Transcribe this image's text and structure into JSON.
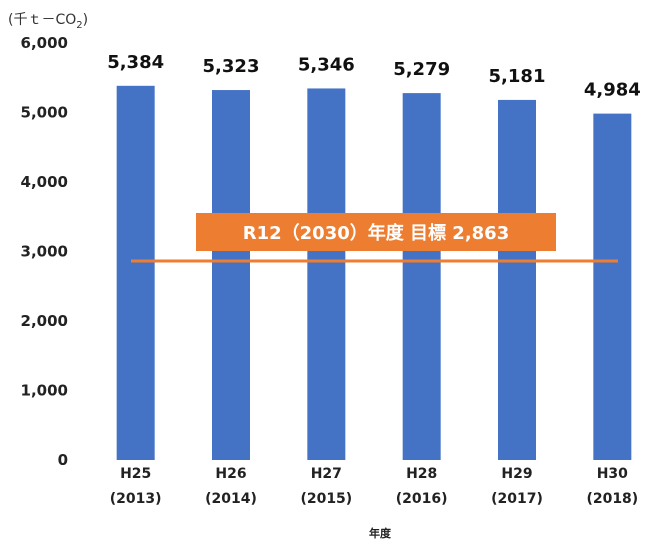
{
  "chart_data": {
    "type": "bar",
    "unit_label": "(千ｔ－CO",
    "unit_sub": "2",
    "unit_close": ")",
    "xlabel": "年度",
    "categories": [
      {
        "top": "H25",
        "bottom": "(2013)"
      },
      {
        "top": "H26",
        "bottom": "(2014)"
      },
      {
        "top": "H27",
        "bottom": "(2015)"
      },
      {
        "top": "H28",
        "bottom": "(2016)"
      },
      {
        "top": "H29",
        "bottom": "(2017)"
      },
      {
        "top": "H30",
        "bottom": "(2018)"
      }
    ],
    "values": [
      5384,
      5323,
      5346,
      5279,
      5181,
      4984
    ],
    "value_labels": [
      "5,384",
      "5,323",
      "5,346",
      "5,279",
      "5,181",
      "4,984"
    ],
    "ylim": [
      0,
      6000
    ],
    "yticks": [
      0,
      1000,
      2000,
      3000,
      4000,
      5000,
      6000
    ],
    "ytick_labels": [
      "0",
      "1,000",
      "2,000",
      "3,000",
      "4,000",
      "5,000",
      "6,000"
    ],
    "grid": false,
    "target": {
      "value": 2863,
      "label": "R12（2030）年度 目標 2,863"
    },
    "colors": {
      "bar": "#4472C4",
      "target": "#ED7D31"
    }
  }
}
